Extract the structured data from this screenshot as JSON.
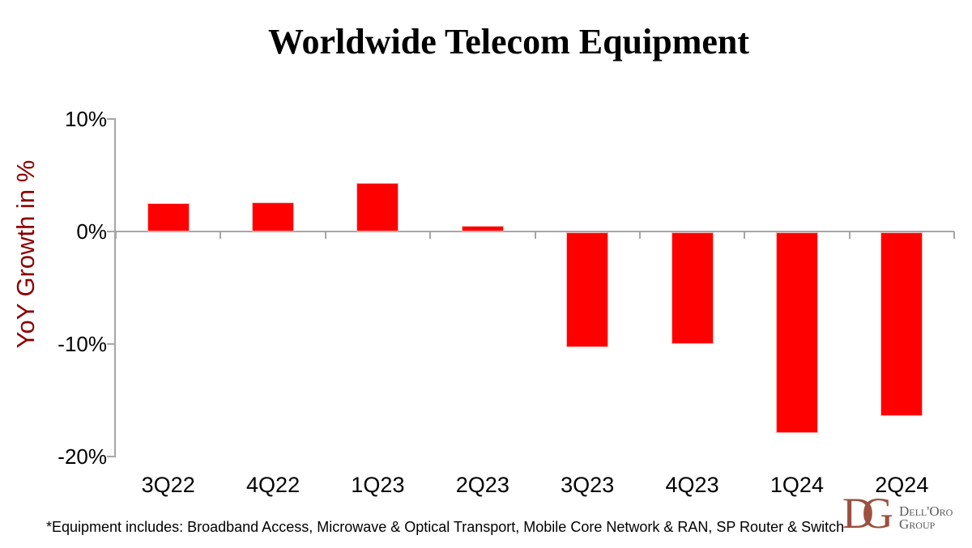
{
  "chart_data": {
    "type": "bar",
    "title": "Worldwide Telecom Equipment",
    "xlabel": "",
    "ylabel": "YoY Growth in %",
    "categories": [
      "3Q22",
      "4Q22",
      "1Q23",
      "2Q23",
      "3Q23",
      "4Q23",
      "1Q24",
      "2Q24"
    ],
    "values": [
      2.5,
      2.6,
      4.3,
      0.5,
      -10.3,
      -10.0,
      -17.9,
      -16.4
    ],
    "ylim": [
      -20,
      10
    ],
    "yticks": [
      10,
      0,
      -10,
      -20
    ],
    "ytick_labels": [
      "10%",
      "0%",
      "-10%",
      "-20%"
    ],
    "bar_color": "#ff0000",
    "axis_color": "#a6a6a6",
    "ylabel_color": "#8b0000",
    "grid": false,
    "legend": false
  },
  "footnote": "*Equipment includes: Broadband Access, Microwave & Optical Transport, Mobile Core Network & RAN, SP Router & Switch",
  "logo": {
    "monogram": "DG",
    "name_line1": "Dell'Oro",
    "name_line2": "Group",
    "monogram_color": "#9c5040",
    "text_color": "#57585a"
  }
}
